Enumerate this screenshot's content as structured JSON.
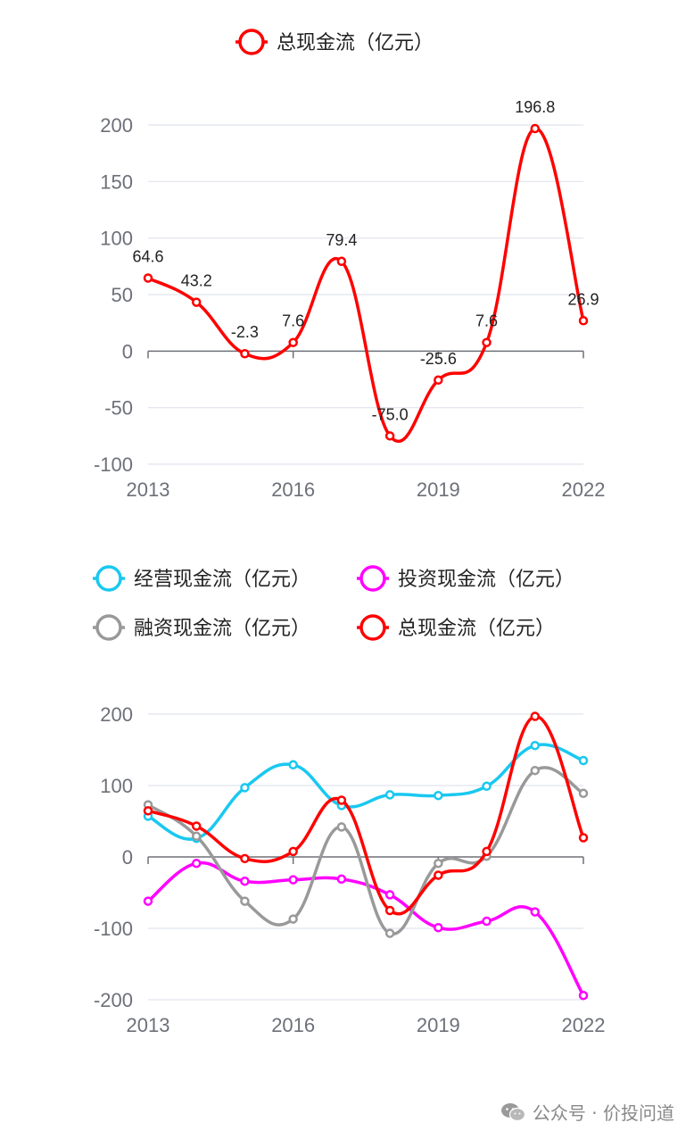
{
  "chart_data": [
    {
      "type": "line",
      "title": "",
      "xlabel": "",
      "ylabel": "",
      "x": [
        2013,
        2014,
        2015,
        2016,
        2017,
        2018,
        2019,
        2020,
        2021,
        2022
      ],
      "x_tick_labels": [
        "2013",
        "2016",
        "2019",
        "2022"
      ],
      "ylim": [
        -100,
        200
      ],
      "y_ticks": [
        -100,
        -50,
        0,
        50,
        100,
        150,
        200
      ],
      "grid": true,
      "legend_position": "top-center",
      "data_labels": true,
      "series": [
        {
          "name": "总现金流（亿元）",
          "color": "#ff0000",
          "values": [
            64.6,
            43.2,
            -2.3,
            7.6,
            79.4,
            -75.0,
            -25.6,
            7.6,
            196.8,
            26.9
          ],
          "labels": [
            "64.6",
            "43.2",
            "-2.3",
            "7.6",
            "79.4",
            "-75.0",
            "-25.6",
            "7.6",
            "196.8",
            "26.9"
          ]
        }
      ]
    },
    {
      "type": "line",
      "title": "",
      "xlabel": "",
      "ylabel": "",
      "x": [
        2013,
        2014,
        2015,
        2016,
        2017,
        2018,
        2019,
        2020,
        2021,
        2022
      ],
      "x_tick_labels": [
        "2013",
        "2016",
        "2019",
        "2022"
      ],
      "ylim": [
        -200,
        200
      ],
      "y_ticks": [
        -200,
        -100,
        0,
        100,
        200
      ],
      "grid": true,
      "legend_position": "top-center",
      "data_labels": false,
      "series": [
        {
          "name": "经营现金流（亿元）",
          "color": "#19c8f0",
          "values": [
            57,
            26,
            97,
            129,
            72,
            87,
            86,
            99,
            156,
            135
          ]
        },
        {
          "name": "投资现金流（亿元）",
          "color": "#ff00ff",
          "values": [
            -62,
            -9,
            -34,
            -32,
            -31,
            -53,
            -99,
            -90,
            -77,
            -194
          ]
        },
        {
          "name": "融资现金流（亿元）",
          "color": "#999999",
          "values": [
            73,
            29,
            -62,
            -87,
            42,
            -107,
            -9,
            1,
            121,
            89
          ]
        },
        {
          "name": "总现金流（亿元）",
          "color": "#ff0000",
          "values": [
            64.6,
            43.2,
            -2.3,
            7.6,
            79.4,
            -75.0,
            -25.6,
            7.6,
            196.8,
            26.9
          ]
        }
      ]
    }
  ],
  "watermark": {
    "text": "公众号 · 价投问道",
    "icon": "wechat-icon"
  }
}
